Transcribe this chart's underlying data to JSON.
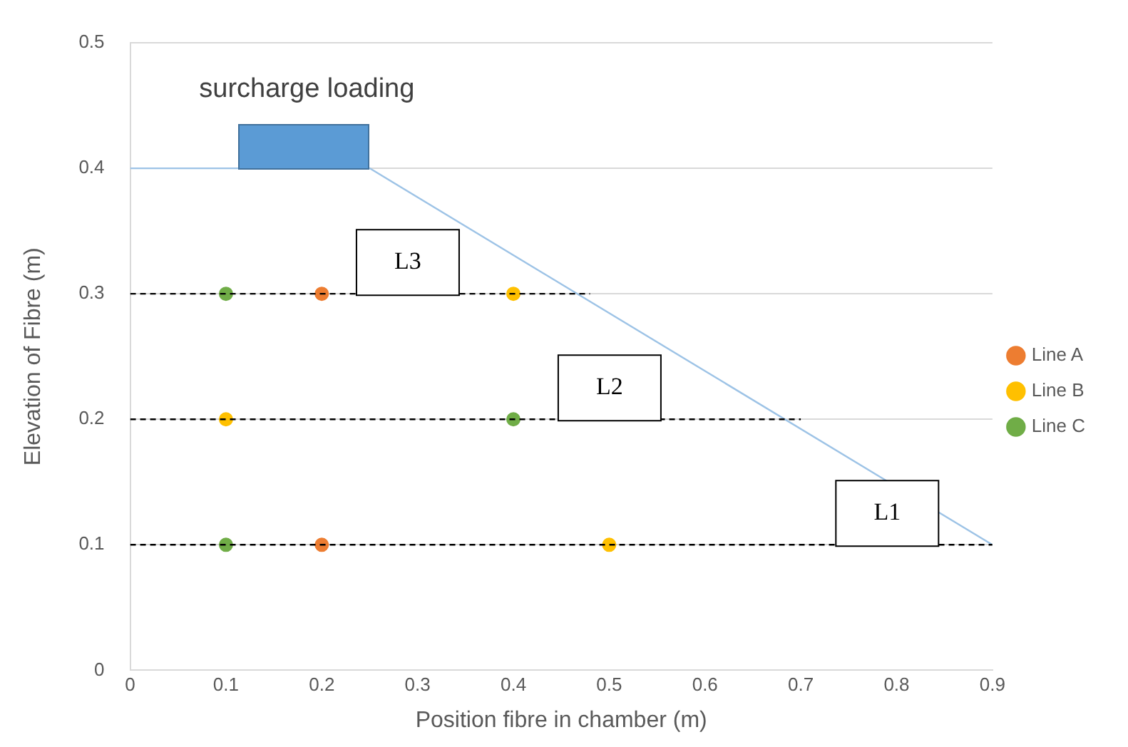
{
  "chart_data": {
    "type": "scatter",
    "xlabel": "Position fibre in chamber (m)",
    "ylabel": "Elevation of Fibre (m)",
    "xlim": [
      0,
      0.9
    ],
    "ylim": [
      0,
      0.5
    ],
    "xticks": [
      0,
      0.1,
      0.2,
      0.3,
      0.4,
      0.5,
      0.6,
      0.7,
      0.8,
      0.9
    ],
    "yticks": [
      0,
      0.1,
      0.2,
      0.3,
      0.4,
      0.5
    ],
    "grid": "y",
    "legend": "right",
    "marker": "circle",
    "series": [
      {
        "type": "line",
        "color": "#000000",
        "line_style": "dashed",
        "marker": "none",
        "x": [
          0,
          0.48
        ],
        "values": [
          0.3,
          0.3
        ]
      },
      {
        "type": "line",
        "color": "#000000",
        "line_style": "dashed",
        "marker": "none",
        "x": [
          0,
          0.7
        ],
        "values": [
          0.2,
          0.2
        ]
      },
      {
        "type": "line",
        "color": "#000000",
        "line_style": "dashed",
        "marker": "none",
        "x": [
          0,
          0.9
        ],
        "values": [
          0.1,
          0.1
        ]
      },
      {
        "type": "line",
        "color": "#9dc3e6",
        "line_style": "solid",
        "marker": "none",
        "x": [
          0,
          0.25,
          0.9
        ],
        "values": [
          0.4,
          0.4,
          0.1
        ]
      },
      {
        "name": "Line A",
        "color": "#ed7d31",
        "x": [
          0.2,
          0.2
        ],
        "values": [
          0.3,
          0.1
        ]
      },
      {
        "name": "Line B",
        "color": "#ffc000",
        "x": [
          0.4,
          0.1,
          0.5
        ],
        "values": [
          0.3,
          0.2,
          0.1
        ]
      },
      {
        "name": "Line C",
        "color": "#70ad47",
        "x": [
          0.1,
          0.4,
          0.1
        ],
        "values": [
          0.3,
          0.2,
          0.1
        ]
      }
    ],
    "annotations": [
      "surcharge loading",
      "L3",
      "L2",
      "L1"
    ]
  }
}
